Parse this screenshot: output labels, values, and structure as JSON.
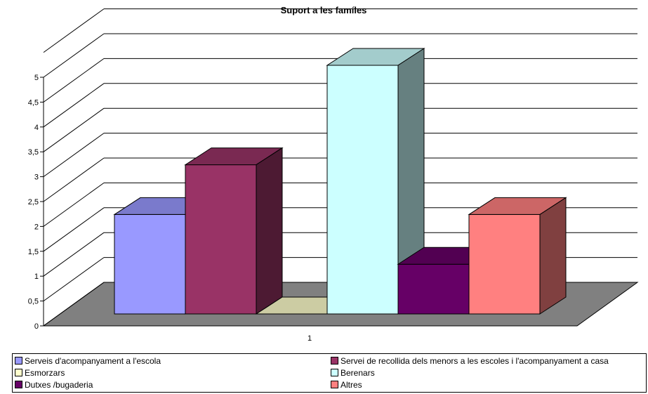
{
  "chart_data": {
    "type": "bar",
    "title": "Suport a les famíles",
    "categories": [
      "1"
    ],
    "ylim": [
      0,
      5
    ],
    "yticks": [
      "0",
      "0,5",
      "1",
      "1,5",
      "2",
      "2,5",
      "3",
      "3,5",
      "4",
      "4,5",
      "5"
    ],
    "grid": true,
    "legend_position": "bottom",
    "series": [
      {
        "name": "Serveis d'acompanyament a l'escola",
        "values": [
          2
        ],
        "color": "#9999FF"
      },
      {
        "name": "Servei de recollida dels menors a les escoles i l'acompanyament a casa",
        "values": [
          3
        ],
        "color": "#993366"
      },
      {
        "name": "Esmorzars",
        "values": [
          0
        ],
        "color": "#FFFFCC"
      },
      {
        "name": "Berenars",
        "values": [
          5
        ],
        "color": "#CCFFFF"
      },
      {
        "name": "Dutxes /bugaderia",
        "values": [
          1
        ],
        "color": "#660066"
      },
      {
        "name": "Altres",
        "values": [
          2
        ],
        "color": "#FF8080"
      }
    ]
  }
}
